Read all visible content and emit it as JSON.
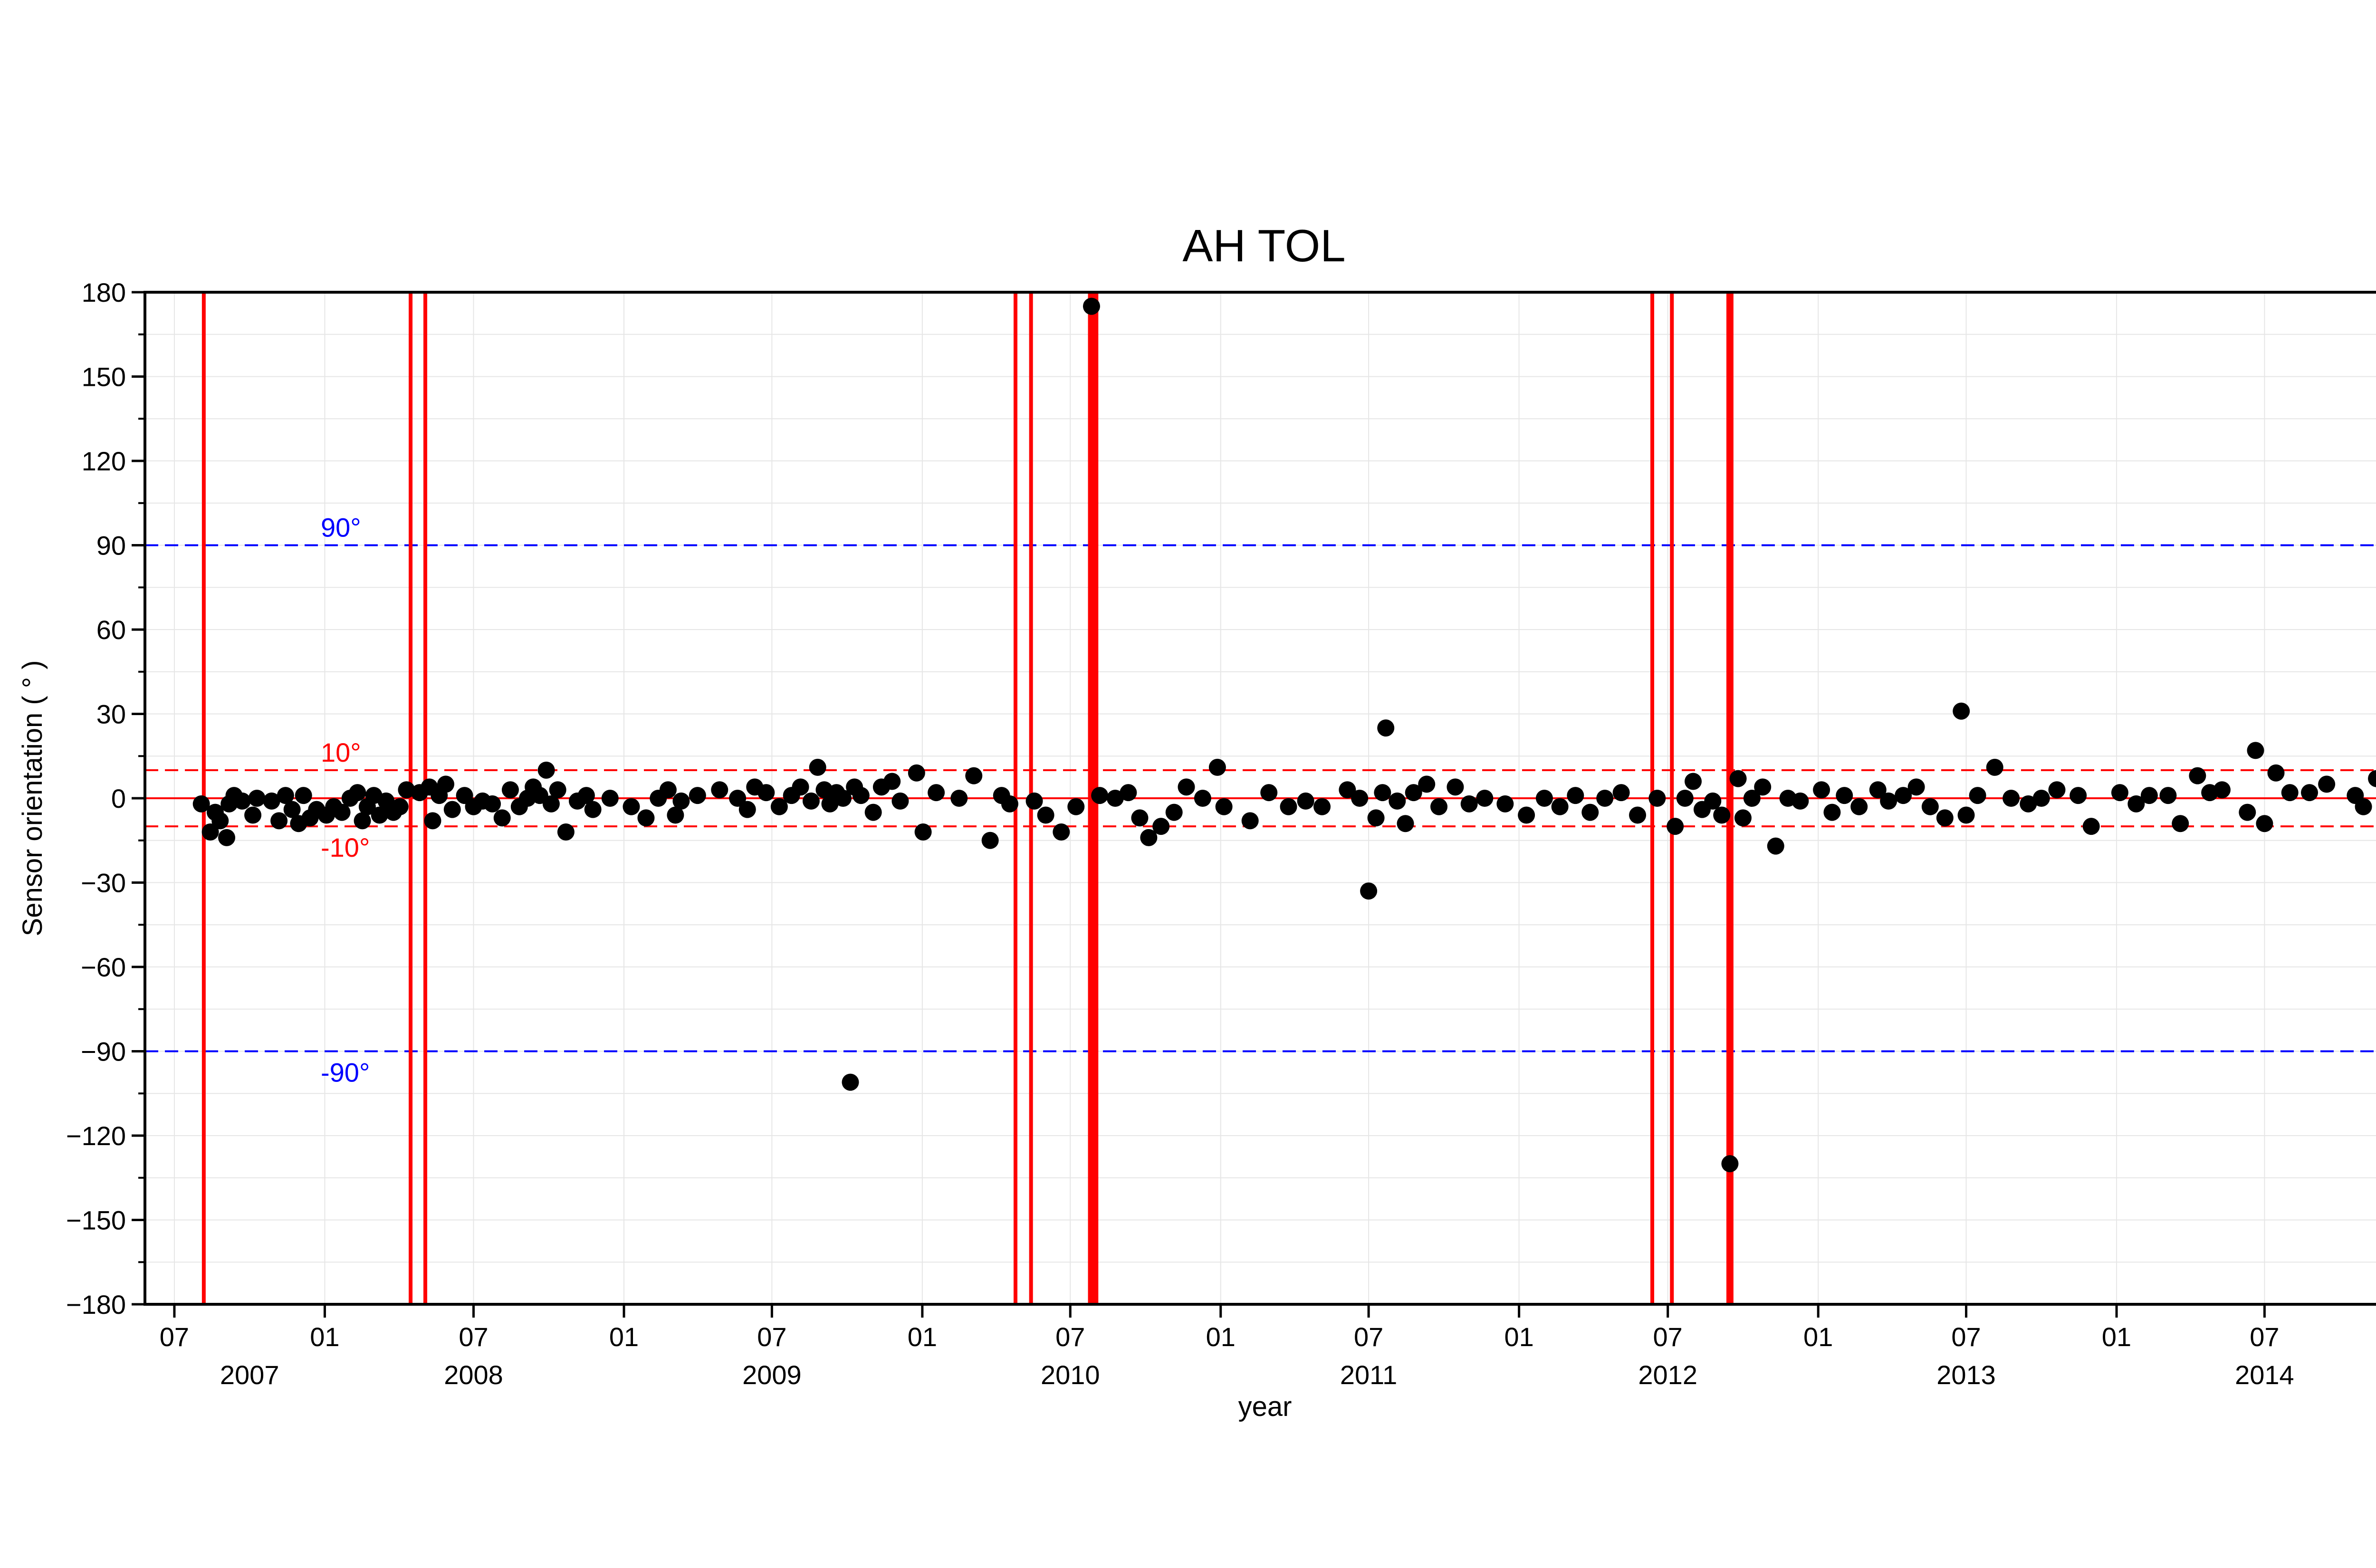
{
  "chart_data": {
    "type": "scatter",
    "title": "AH TOL",
    "xlabel": "year",
    "ylabel": "Sensor orientation ( ° )",
    "x_range": [
      "2007-05-26",
      "2014-11-26"
    ],
    "ylim": [
      -180,
      180
    ],
    "grid": true,
    "y_ticks": [
      180,
      150,
      120,
      90,
      60,
      30,
      0,
      -30,
      -60,
      -90,
      -120,
      -150,
      -180
    ],
    "y_tick_labels": [
      "180",
      "150",
      "120",
      "90",
      "60",
      "30",
      "0",
      "−30",
      "−60",
      "−90",
      "−120",
      "−150",
      "−180"
    ],
    "x_ticks": [
      {
        "date": "2007-07-01",
        "label": "07"
      },
      {
        "date": "2008-01-01",
        "label": "01"
      },
      {
        "date": "2008-07-01",
        "label": "07"
      },
      {
        "date": "2009-01-01",
        "label": "01"
      },
      {
        "date": "2009-07-01",
        "label": "07"
      },
      {
        "date": "2010-01-01",
        "label": "01"
      },
      {
        "date": "2010-07-01",
        "label": "07"
      },
      {
        "date": "2011-01-01",
        "label": "01"
      },
      {
        "date": "2011-07-01",
        "label": "07"
      },
      {
        "date": "2012-01-01",
        "label": "01"
      },
      {
        "date": "2012-07-01",
        "label": "07"
      },
      {
        "date": "2013-01-01",
        "label": "01"
      },
      {
        "date": "2013-07-01",
        "label": "07"
      },
      {
        "date": "2014-01-01",
        "label": "01"
      },
      {
        "date": "2014-07-01",
        "label": "07"
      }
    ],
    "year_labels": [
      {
        "date": "2007-10-01",
        "label": "2007"
      },
      {
        "date": "2008-07-01",
        "label": "2008"
      },
      {
        "date": "2009-07-01",
        "label": "2009"
      },
      {
        "date": "2010-07-01",
        "label": "2010"
      },
      {
        "date": "2011-07-01",
        "label": "2011"
      },
      {
        "date": "2012-07-01",
        "label": "2012"
      },
      {
        "date": "2013-07-01",
        "label": "2013"
      },
      {
        "date": "2014-07-01",
        "label": "2014"
      }
    ],
    "reference_lines": [
      {
        "y": 90,
        "label": "90°",
        "color": "#0000ff",
        "style": "dashed"
      },
      {
        "y": -90,
        "label": "-90°",
        "color": "#0000ff",
        "style": "dashed"
      },
      {
        "y": 10,
        "label": "10°",
        "color": "#ff0000",
        "style": "dashed"
      },
      {
        "y": -10,
        "label": "-10°",
        "color": "#ff0000",
        "style": "dashed"
      },
      {
        "y": 0,
        "label": "",
        "color": "#ff0000",
        "style": "solid"
      }
    ],
    "event_lines": [
      "2007-08-06",
      "2008-04-15",
      "2008-05-03",
      "2010-04-25",
      "2010-05-14",
      "2010-07-25",
      "2010-07-29",
      "2010-08-02",
      "2012-06-12",
      "2012-07-06",
      "2012-09-13",
      "2012-09-17"
    ],
    "points_color": "#000000",
    "points": [
      [
        "2007-08-03",
        -2
      ],
      [
        "2007-08-14",
        -12
      ],
      [
        "2007-08-20",
        -5
      ],
      [
        "2007-08-26",
        -8
      ],
      [
        "2007-09-03",
        -14
      ],
      [
        "2007-09-06",
        -2
      ],
      [
        "2007-09-12",
        1
      ],
      [
        "2007-09-22",
        -1
      ],
      [
        "2007-10-05",
        -6
      ],
      [
        "2007-10-10",
        0
      ],
      [
        "2007-10-28",
        -1
      ],
      [
        "2007-11-06",
        -8
      ],
      [
        "2007-11-14",
        1
      ],
      [
        "2007-11-22",
        -4
      ],
      [
        "2007-11-30",
        -9
      ],
      [
        "2007-12-06",
        1
      ],
      [
        "2007-12-14",
        -7
      ],
      [
        "2007-12-22",
        -4
      ],
      [
        "2008-01-03",
        -6
      ],
      [
        "2008-01-12",
        -3
      ],
      [
        "2008-01-22",
        -5
      ],
      [
        "2008-02-01",
        0
      ],
      [
        "2008-02-10",
        2
      ],
      [
        "2008-02-16",
        -8
      ],
      [
        "2008-02-22",
        -3
      ],
      [
        "2008-03-01",
        1
      ],
      [
        "2008-03-08",
        -6
      ],
      [
        "2008-03-16",
        -1
      ],
      [
        "2008-03-25",
        -5
      ],
      [
        "2008-04-02",
        -3
      ],
      [
        "2008-04-10",
        3
      ],
      [
        "2008-04-26",
        2
      ],
      [
        "2008-05-08",
        4
      ],
      [
        "2008-05-12",
        -8
      ],
      [
        "2008-05-20",
        1
      ],
      [
        "2008-05-28",
        5
      ],
      [
        "2008-06-05",
        -4
      ],
      [
        "2008-06-20",
        1
      ],
      [
        "2008-07-01",
        -3
      ],
      [
        "2008-07-12",
        -1
      ],
      [
        "2008-07-24",
        -2
      ],
      [
        "2008-08-05",
        -7
      ],
      [
        "2008-08-15",
        3
      ],
      [
        "2008-08-26",
        -3
      ],
      [
        "2008-09-05",
        0
      ],
      [
        "2008-09-12",
        4
      ],
      [
        "2008-09-20",
        1
      ],
      [
        "2008-09-28",
        10
      ],
      [
        "2008-10-04",
        -2
      ],
      [
        "2008-10-12",
        3
      ],
      [
        "2008-10-22",
        -12
      ],
      [
        "2008-11-05",
        -1
      ],
      [
        "2008-11-16",
        1
      ],
      [
        "2008-11-24",
        -4
      ],
      [
        "2008-12-15",
        0
      ],
      [
        "2009-01-10",
        -3
      ],
      [
        "2009-01-28",
        -7
      ],
      [
        "2009-02-12",
        0
      ],
      [
        "2009-02-24",
        3
      ],
      [
        "2009-03-05",
        -6
      ],
      [
        "2009-03-12",
        -1
      ],
      [
        "2009-04-01",
        1
      ],
      [
        "2009-04-28",
        3
      ],
      [
        "2009-05-20",
        0
      ],
      [
        "2009-06-01",
        -4
      ],
      [
        "2009-06-10",
        4
      ],
      [
        "2009-06-24",
        2
      ],
      [
        "2009-07-10",
        -3
      ],
      [
        "2009-07-25",
        1
      ],
      [
        "2009-08-05",
        4
      ],
      [
        "2009-08-18",
        -1
      ],
      [
        "2009-08-26",
        11
      ],
      [
        "2009-09-03",
        3
      ],
      [
        "2009-09-10",
        -2
      ],
      [
        "2009-09-18",
        2
      ],
      [
        "2009-09-26",
        0
      ],
      [
        "2009-10-05",
        -101
      ],
      [
        "2009-10-10",
        4
      ],
      [
        "2009-10-18",
        1
      ],
      [
        "2009-11-02",
        -5
      ],
      [
        "2009-11-12",
        4
      ],
      [
        "2009-11-25",
        6
      ],
      [
        "2009-12-05",
        -1
      ],
      [
        "2009-12-25",
        9
      ],
      [
        "2010-01-02",
        -12
      ],
      [
        "2010-01-18",
        2
      ],
      [
        "2010-02-15",
        0
      ],
      [
        "2010-03-05",
        8
      ],
      [
        "2010-03-25",
        -15
      ],
      [
        "2010-04-08",
        1
      ],
      [
        "2010-04-18",
        -2
      ],
      [
        "2010-05-18",
        -1
      ],
      [
        "2010-06-01",
        -6
      ],
      [
        "2010-06-20",
        -12
      ],
      [
        "2010-07-08",
        -3
      ],
      [
        "2010-07-27",
        175
      ],
      [
        "2010-08-06",
        1
      ],
      [
        "2010-08-25",
        0
      ],
      [
        "2010-09-10",
        2
      ],
      [
        "2010-09-24",
        -7
      ],
      [
        "2010-10-05",
        -14
      ],
      [
        "2010-10-20",
        -10
      ],
      [
        "2010-11-05",
        -5
      ],
      [
        "2010-11-20",
        4
      ],
      [
        "2010-12-10",
        0
      ],
      [
        "2010-12-28",
        11
      ],
      [
        "2011-01-05",
        -3
      ],
      [
        "2011-02-06",
        -8
      ],
      [
        "2011-03-01",
        2
      ],
      [
        "2011-03-25",
        -3
      ],
      [
        "2011-04-15",
        -1
      ],
      [
        "2011-05-05",
        -3
      ],
      [
        "2011-06-05",
        3
      ],
      [
        "2011-06-20",
        0
      ],
      [
        "2011-07-01",
        -33
      ],
      [
        "2011-07-10",
        -7
      ],
      [
        "2011-07-18",
        2
      ],
      [
        "2011-07-22",
        25
      ],
      [
        "2011-08-05",
        -1
      ],
      [
        "2011-08-15",
        -9
      ],
      [
        "2011-08-25",
        2
      ],
      [
        "2011-09-10",
        5
      ],
      [
        "2011-09-25",
        -3
      ],
      [
        "2011-10-15",
        4
      ],
      [
        "2011-11-01",
        -2
      ],
      [
        "2011-11-20",
        0
      ],
      [
        "2011-12-15",
        -2
      ],
      [
        "2012-01-10",
        -6
      ],
      [
        "2012-02-01",
        0
      ],
      [
        "2012-02-20",
        -3
      ],
      [
        "2012-03-10",
        1
      ],
      [
        "2012-03-28",
        -5
      ],
      [
        "2012-04-15",
        0
      ],
      [
        "2012-05-05",
        2
      ],
      [
        "2012-05-25",
        -6
      ],
      [
        "2012-06-18",
        0
      ],
      [
        "2012-07-10",
        -10
      ],
      [
        "2012-07-22",
        0
      ],
      [
        "2012-08-01",
        6
      ],
      [
        "2012-08-12",
        -4
      ],
      [
        "2012-08-25",
        -1
      ],
      [
        "2012-09-05",
        -6
      ],
      [
        "2012-09-15",
        -130
      ],
      [
        "2012-09-25",
        7
      ],
      [
        "2012-10-01",
        -7
      ],
      [
        "2012-10-12",
        0
      ],
      [
        "2012-10-25",
        4
      ],
      [
        "2012-11-10",
        -17
      ],
      [
        "2012-11-25",
        0
      ],
      [
        "2012-12-10",
        -1
      ],
      [
        "2013-01-05",
        3
      ],
      [
        "2013-01-18",
        -5
      ],
      [
        "2013-02-02",
        1
      ],
      [
        "2013-02-20",
        -3
      ],
      [
        "2013-03-15",
        3
      ],
      [
        "2013-03-28",
        -1
      ],
      [
        "2013-04-15",
        1
      ],
      [
        "2013-05-01",
        4
      ],
      [
        "2013-05-18",
        -3
      ],
      [
        "2013-06-05",
        -7
      ],
      [
        "2013-06-25",
        31
      ],
      [
        "2013-07-01",
        -6
      ],
      [
        "2013-07-15",
        1
      ],
      [
        "2013-08-05",
        11
      ],
      [
        "2013-08-25",
        0
      ],
      [
        "2013-09-15",
        -2
      ],
      [
        "2013-10-01",
        0
      ],
      [
        "2013-10-20",
        3
      ],
      [
        "2013-11-15",
        1
      ],
      [
        "2013-12-01",
        -10
      ],
      [
        "2014-01-05",
        2
      ],
      [
        "2014-01-25",
        -2
      ],
      [
        "2014-02-10",
        1
      ],
      [
        "2014-03-05",
        1
      ],
      [
        "2014-03-20",
        -9
      ],
      [
        "2014-04-10",
        8
      ],
      [
        "2014-04-25",
        2
      ],
      [
        "2014-05-10",
        3
      ],
      [
        "2014-06-10",
        -5
      ],
      [
        "2014-06-20",
        17
      ],
      [
        "2014-07-01",
        -9
      ],
      [
        "2014-07-15",
        9
      ],
      [
        "2014-08-01",
        2
      ],
      [
        "2014-08-25",
        2
      ],
      [
        "2014-09-15",
        5
      ],
      [
        "2014-10-20",
        1
      ],
      [
        "2014-10-30",
        -3
      ],
      [
        "2014-11-15",
        7
      ]
    ]
  }
}
